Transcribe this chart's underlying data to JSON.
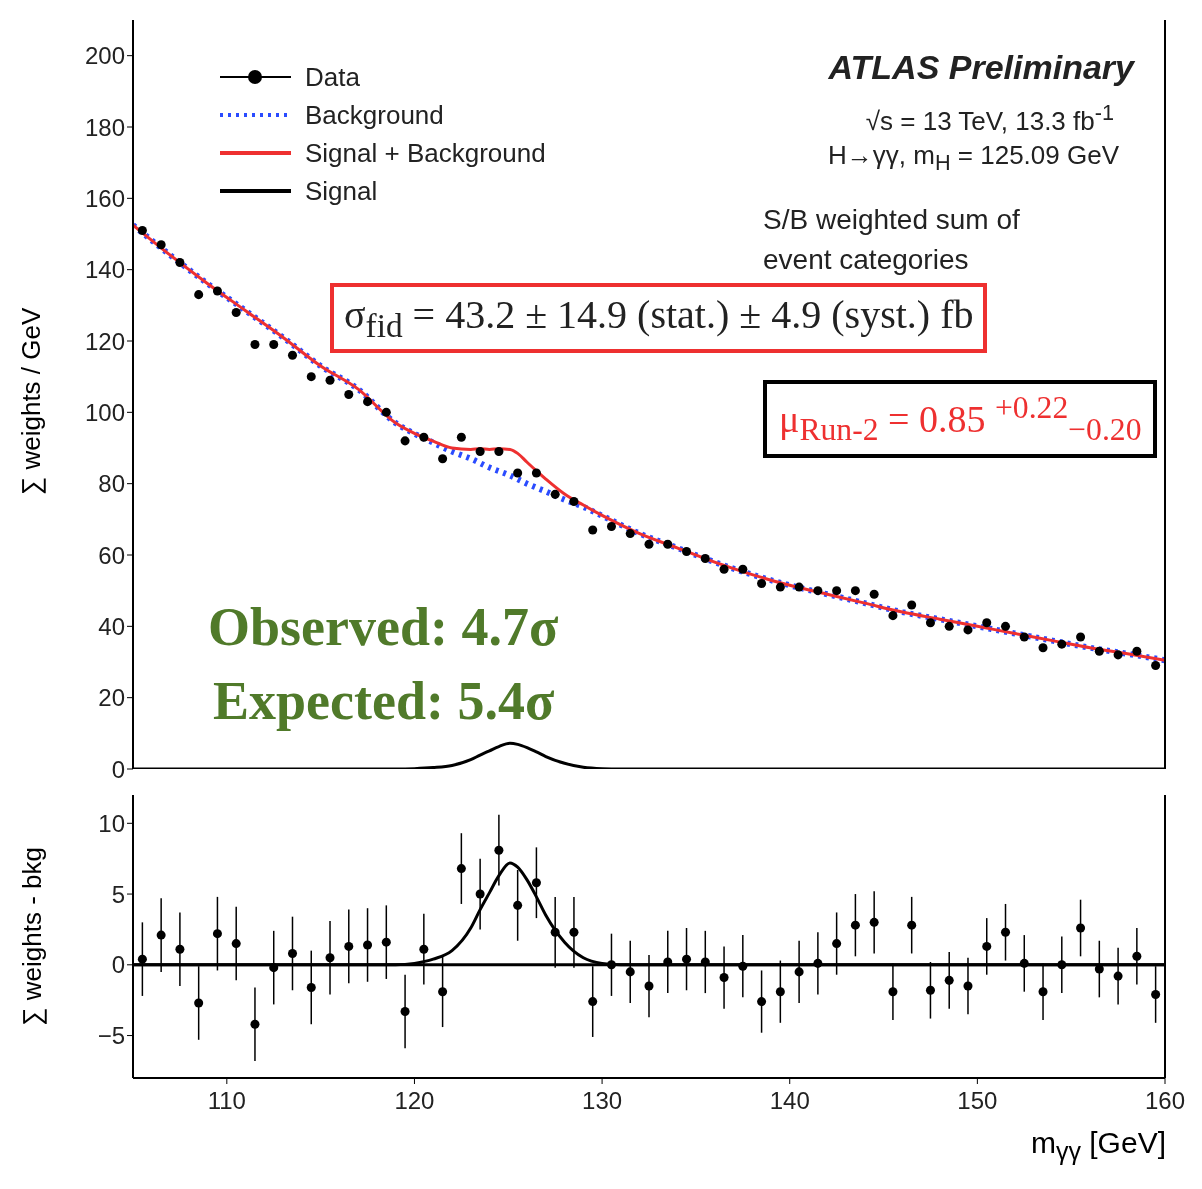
{
  "chart_data": [
    {
      "type": "line",
      "ylabel": "∑ weights / GeV",
      "xlim": [
        105,
        160
      ],
      "xticks": [
        110,
        120,
        130,
        140,
        150,
        160
      ],
      "ylim": [
        0,
        210
      ],
      "yticks": [
        0,
        20,
        40,
        60,
        80,
        100,
        120,
        140,
        160,
        180,
        200
      ],
      "tick_labels": "y",
      "legend": "top left",
      "annotations": [
        "ATLAS Preliminary",
        "√s = 13 TeV, 13.3 fb$^{-1}$",
        "H→γγ, m$_{H}$ = 125.09 GeV",
        "S/B weighted sum of event categories",
        "σ$_{fid}$ = 43.2 ± 14.9 (stat.) ± 4.9 (syst.) fb",
        "μ$_{Run-2}$ = 0.85 $^{+0.22}$$_{−0.20}$",
        "Observed: 4.7σ",
        "Expected: 5.4σ"
      ],
      "series": [
        {
          "name": "Data",
          "type": "scatter",
          "marker": "circle",
          "color": "#000000",
          "x": [
            105.5,
            106.5,
            107.5,
            108.5,
            109.5,
            110.5,
            111.5,
            112.5,
            113.5,
            114.5,
            115.5,
            116.5,
            117.5,
            118.5,
            119.5,
            120.5,
            121.5,
            122.5,
            123.5,
            124.5,
            125.5,
            126.5,
            127.5,
            128.5,
            129.5,
            130.5,
            131.5,
            132.5,
            133.5,
            134.5,
            135.5,
            136.5,
            137.5,
            138.5,
            139.5,
            140.5,
            141.5,
            142.5,
            143.5,
            144.5,
            145.5,
            146.5,
            147.5,
            148.5,
            149.5,
            150.5,
            151.5,
            152.5,
            153.5,
            154.5,
            155.5,
            156.5,
            157.5,
            158.5,
            159.5
          ],
          "values": [
            151,
            147,
            142,
            133,
            134,
            128,
            119,
            119,
            116,
            110,
            109,
            105,
            103,
            100,
            92,
            93,
            87,
            93,
            89,
            89,
            83,
            83,
            77,
            75,
            67,
            68,
            66,
            63,
            63,
            61,
            59,
            56,
            56,
            52,
            51,
            51,
            50,
            50,
            50,
            49,
            43,
            46,
            41,
            40,
            39,
            41,
            40,
            37,
            34,
            35,
            37,
            33,
            32,
            33,
            29
          ]
        },
        {
          "name": "Background",
          "line_style": "dotted",
          "color": "#2a4bff",
          "x": [
            105,
            107,
            109,
            111,
            113,
            115,
            117,
            119,
            120,
            121,
            122,
            123,
            124,
            125,
            126,
            127,
            128,
            129,
            130,
            132,
            134,
            136,
            138,
            140,
            142,
            144,
            146,
            148,
            150,
            152,
            154,
            156,
            158,
            160
          ],
          "values": [
            152.5,
            144,
            136,
            128.5,
            121,
            113,
            106.5,
            97,
            94,
            91.5,
            89,
            87,
            84.5,
            82.5,
            80,
            77.8,
            75.5,
            73.5,
            71,
            66,
            62,
            58,
            54.5,
            51.5,
            49,
            46.5,
            44,
            42,
            40,
            38,
            36,
            34,
            32.3,
            30.5
          ]
        },
        {
          "name": "Signal + Background",
          "line_style": "solid",
          "color": "#ee3030",
          "x": [
            105,
            107,
            109,
            111,
            113,
            115,
            117,
            119,
            120,
            121,
            122,
            123,
            123.5,
            124,
            124.5,
            125.09,
            125.5,
            126,
            126.5,
            127,
            128,
            129,
            130,
            132,
            134,
            136,
            138,
            140,
            142,
            144,
            146,
            148,
            150,
            152,
            154,
            156,
            158,
            160
          ],
          "values": [
            152.5,
            144,
            136,
            128.5,
            121,
            113,
            106.5,
            97,
            94.1,
            91.9,
            90,
            89.6,
            89.8,
            89.6,
            89.8,
            89.6,
            88.5,
            86,
            83.6,
            81.3,
            77.1,
            74,
            71.1,
            66,
            62,
            58,
            54.5,
            51.5,
            49,
            46.5,
            44,
            42,
            40,
            38,
            36,
            34,
            32.3,
            30.5
          ]
        },
        {
          "name": "Signal",
          "line_style": "solid",
          "color": "#000000",
          "x": [
            105,
            119,
            120,
            121,
            122,
            123,
            123.5,
            124,
            124.5,
            125.09,
            125.5,
            126,
            126.5,
            127,
            128,
            129,
            130,
            131,
            160
          ],
          "values": [
            0,
            0,
            0.1,
            0.4,
            1,
            2.6,
            3.9,
            5.1,
            6.3,
            7.2,
            6.9,
            6,
            4.8,
            3.5,
            1.6,
            0.5,
            0.1,
            0,
            0
          ]
        }
      ]
    },
    {
      "type": "line",
      "ylabel": "∑ weights - bkg",
      "xlabel": "m$_{γγ}$ [GeV]",
      "xlim": [
        105,
        160
      ],
      "xticks": [
        110,
        120,
        130,
        140,
        150,
        160
      ],
      "ylim": [
        -8,
        12
      ],
      "yticks": [
        -5,
        0,
        5,
        10
      ],
      "ref_lines": [
        {
          "axis": "y",
          "value": 0,
          "color": "#000000",
          "line_style": "solid"
        }
      ],
      "series": [
        {
          "type": "scatter",
          "marker": "circle",
          "color": "#000000",
          "x": [
            105.5,
            106.5,
            107.5,
            108.5,
            109.5,
            110.5,
            111.5,
            112.5,
            113.5,
            114.5,
            115.5,
            116.5,
            117.5,
            118.5,
            119.5,
            120.5,
            121.5,
            122.5,
            123.5,
            124.5,
            125.5,
            126.5,
            127.5,
            128.5,
            129.5,
            130.5,
            131.5,
            132.5,
            133.5,
            134.5,
            135.5,
            136.5,
            137.5,
            138.5,
            139.5,
            140.5,
            141.5,
            142.5,
            143.5,
            144.5,
            145.5,
            146.5,
            147.5,
            148.5,
            149.5,
            150.5,
            151.5,
            152.5,
            153.5,
            154.5,
            155.5,
            156.5,
            157.5,
            158.5,
            159.5
          ],
          "values": [
            0.4,
            2.1,
            1.1,
            -2.7,
            2.2,
            1.5,
            -4.2,
            -0.2,
            0.8,
            -1.6,
            0.5,
            1.3,
            1.4,
            1.6,
            -3.3,
            1.1,
            -1.9,
            6.8,
            5,
            8.1,
            4.2,
            5.8,
            2.3,
            2.3,
            -2.6,
            0,
            -0.5,
            -1.5,
            0.2,
            0.4,
            0.2,
            -0.9,
            -0.1,
            -2.6,
            -1.9,
            -0.5,
            0.1,
            1.5,
            2.8,
            3,
            -1.9,
            2.8,
            -1.8,
            -1.1,
            -1.5,
            1.3,
            2.3,
            0.1,
            -1.9,
            0,
            2.6,
            -0.3,
            -0.8,
            0.6,
            -2.1
          ],
          "errors": [
            2.6,
            2.6,
            2.6,
            2.6,
            2.6,
            2.6,
            2.6,
            2.6,
            2.6,
            2.6,
            2.6,
            2.6,
            2.6,
            2.6,
            2.6,
            2.5,
            2.5,
            2.5,
            2.5,
            2.5,
            2.5,
            2.5,
            2.5,
            2.5,
            2.5,
            2.2,
            2.2,
            2.2,
            2.2,
            2.2,
            2.2,
            2.2,
            2.2,
            2.2,
            2.2,
            2.2,
            2.2,
            2.2,
            2.2,
            2.2,
            2,
            2,
            2,
            2,
            2,
            2,
            2,
            2,
            2,
            2,
            2,
            2,
            2,
            2,
            2
          ]
        },
        {
          "line_style": "solid",
          "color": "#000000",
          "x": [
            105,
            119,
            120,
            121,
            122,
            123,
            123.5,
            124,
            124.5,
            125.09,
            125.5,
            126,
            126.5,
            127,
            128,
            129,
            130,
            131,
            160
          ],
          "values": [
            0,
            0,
            0.1,
            0.4,
            1,
            2.6,
            3.9,
            5.1,
            6.3,
            7.2,
            6.9,
            6,
            4.8,
            3.5,
            1.6,
            0.5,
            0.1,
            0,
            0
          ]
        }
      ]
    }
  ]
}
